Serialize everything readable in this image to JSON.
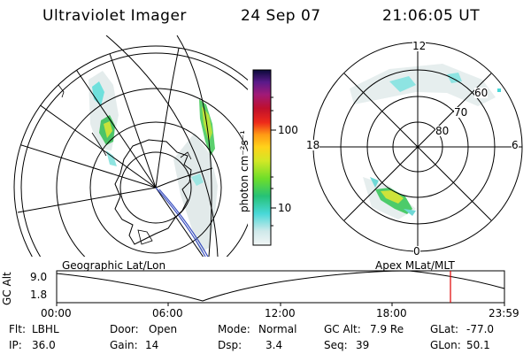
{
  "header": {
    "title": "Ultraviolet Imager",
    "date": "24 Sep 07",
    "time": "21:06:05 UT"
  },
  "colorbar": {
    "unit_label": "photon cm⁻²s⁻¹",
    "ticks": [
      "100",
      "10"
    ],
    "scale": "log"
  },
  "geo_panel": {
    "label": "Geographic Lat/Lon"
  },
  "mlt_panel": {
    "label": "Apex MLat/MLT",
    "mlt_labels": {
      "top": "12",
      "left": "18",
      "right": "6",
      "bottom": "0"
    },
    "lat_labels": [
      "60",
      "70",
      "80"
    ]
  },
  "altitude_plot": {
    "ylabel": "GC Alt",
    "yticks": [
      "9.0",
      "1.8"
    ],
    "xticks": [
      "00:00",
      "06:00",
      "12:00",
      "18:00",
      "23:59"
    ],
    "marker_time": "21:06",
    "marker_color": "#e00000"
  },
  "status": {
    "row1": [
      {
        "label": "Flt:",
        "value": "LBHL"
      },
      {
        "label": "Door:",
        "value": "Open"
      },
      {
        "label": "Mode:",
        "value": "Normal"
      },
      {
        "label": "GC Alt:",
        "value": "7.9 Re"
      },
      {
        "label": "GLat:",
        "value": "-77.0"
      }
    ],
    "row2": [
      {
        "label": "IP:",
        "value": "36.0"
      },
      {
        "label": "Gain:",
        "value": "14"
      },
      {
        "label": "Dsp:",
        "value": "3.4"
      },
      {
        "label": "Seq:",
        "value": "39"
      },
      {
        "label": "GLon:",
        "value": "50.1"
      }
    ]
  }
}
